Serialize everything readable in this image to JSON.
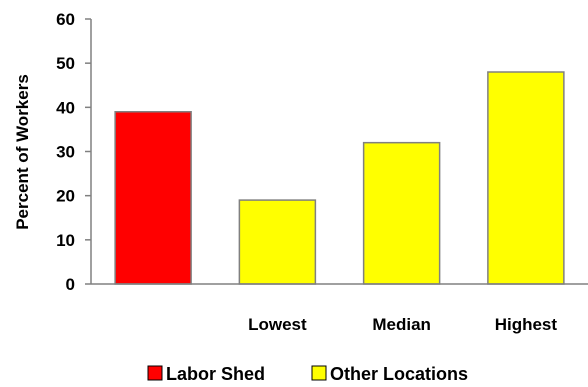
{
  "chart_data": {
    "type": "bar",
    "ylabel": "Percent of Workers",
    "ylim": [
      0,
      60
    ],
    "yticks": [
      0,
      10,
      20,
      30,
      40,
      50,
      60
    ],
    "grid": false,
    "legend_position": "bottom",
    "categories": [
      "",
      "Lowest",
      "Median",
      "Highest"
    ],
    "bars": [
      {
        "category": "",
        "value": 39,
        "series": "Labor Shed"
      },
      {
        "category": "Lowest",
        "value": 19,
        "series": "Other Locations"
      },
      {
        "category": "Median",
        "value": 32,
        "series": "Other Locations"
      },
      {
        "category": "Highest",
        "value": 48,
        "series": "Other Locations"
      }
    ],
    "series": [
      {
        "name": "Labor Shed",
        "color": "#ff0000"
      },
      {
        "name": "Other Locations",
        "color": "#ffff00"
      }
    ]
  }
}
